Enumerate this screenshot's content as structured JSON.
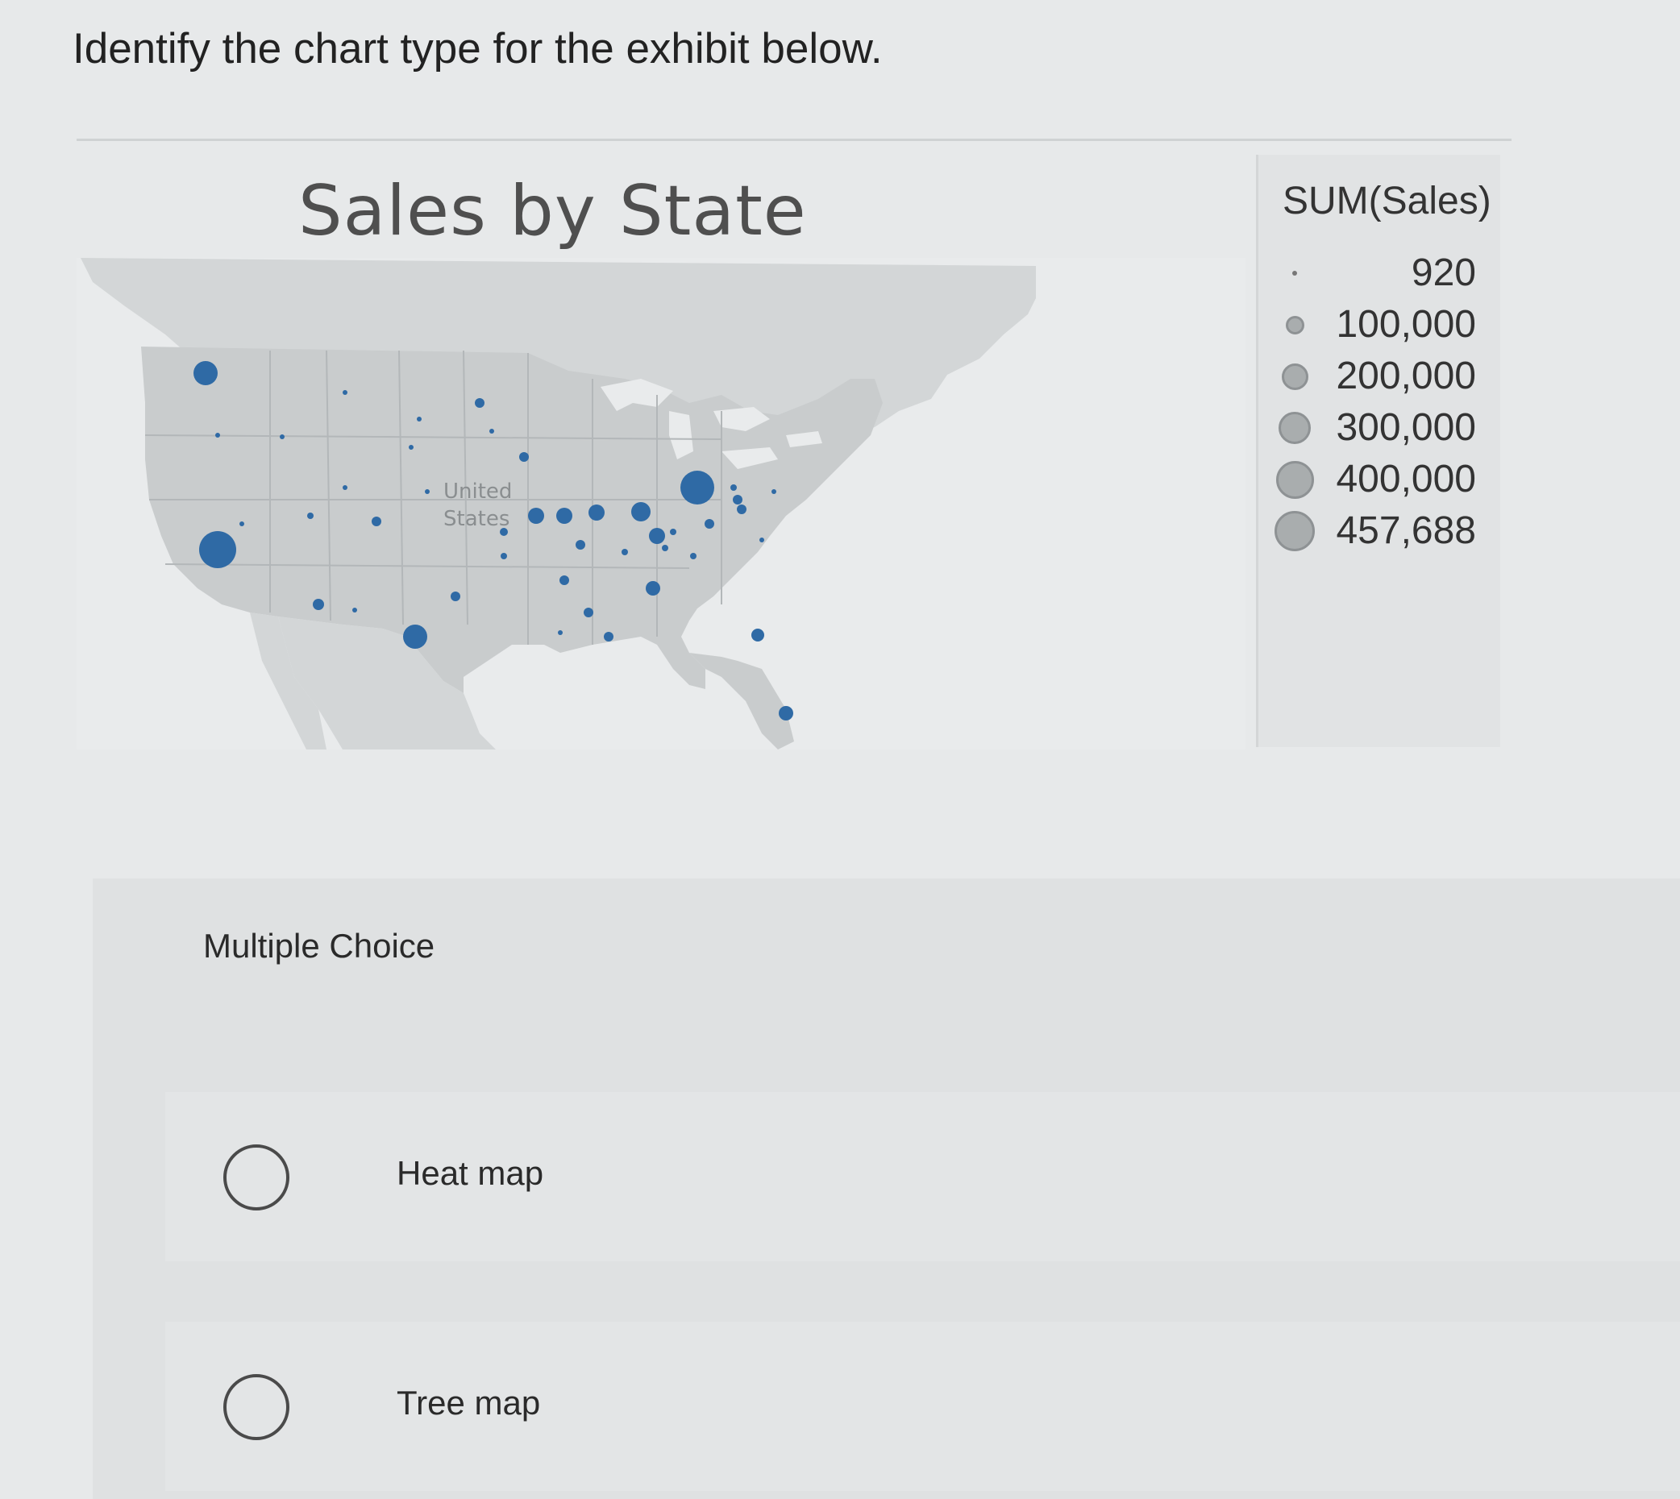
{
  "question": {
    "text": "Identify the chart type for the exhibit below."
  },
  "exhibit": {
    "title": "Sales by State",
    "map_label_line1": "United",
    "map_label_line2": "States",
    "colors": {
      "land": "#c9cccd",
      "water": "#e9ebec",
      "border": "#b3b7b9",
      "bubble": "#2f6aa5",
      "legend_bubble": "#a9adae"
    }
  },
  "legend": {
    "title": "SUM(Sales)",
    "items": [
      {
        "label": "920",
        "value": 920
      },
      {
        "label": "100,000",
        "value": 100000
      },
      {
        "label": "200,000",
        "value": 200000
      },
      {
        "label": "300,000",
        "value": 300000
      },
      {
        "label": "400,000",
        "value": 400000
      },
      {
        "label": "457,688",
        "value": 457688
      }
    ]
  },
  "multiple_choice": {
    "heading": "Multiple Choice",
    "options": [
      {
        "label": "Heat map"
      },
      {
        "label": "Tree map"
      }
    ]
  }
}
